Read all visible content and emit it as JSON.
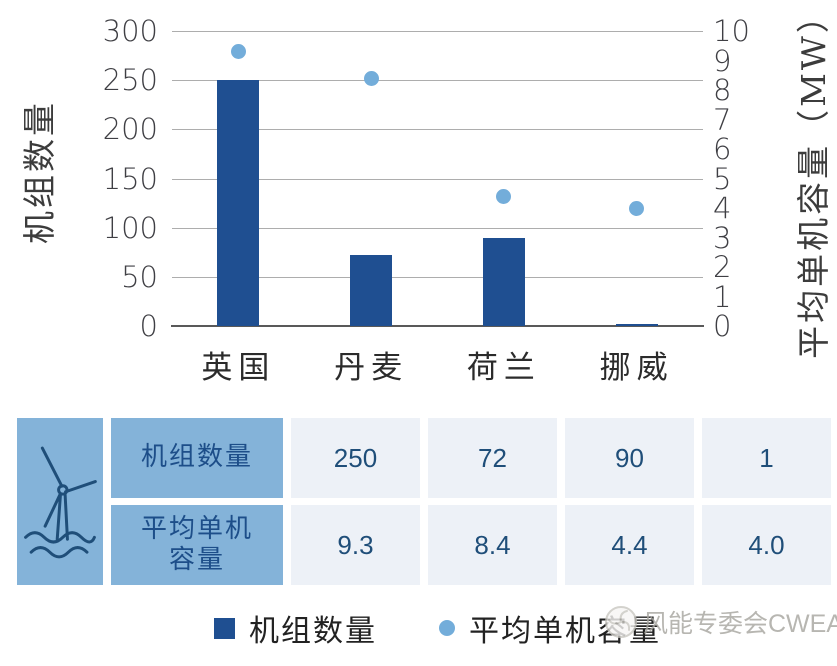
{
  "chart_data": {
    "type": "bar",
    "subtype": "combo-bar-scatter-dual-axis",
    "categories": [
      "英国",
      "丹麦",
      "荷兰",
      "挪威"
    ],
    "series": [
      {
        "name": "机组数量",
        "type": "bar",
        "axis": "left",
        "color": "#1F4F91",
        "values": [
          250,
          72,
          90,
          1
        ]
      },
      {
        "name": "平均单机容量",
        "type": "scatter",
        "axis": "right",
        "color": "#73ADDA",
        "values": [
          9.3,
          8.4,
          4.4,
          4.0
        ]
      }
    ],
    "left_axis": {
      "label": "机组数量",
      "min": 0,
      "max": 300,
      "step": 50,
      "ticks": [
        0,
        50,
        100,
        150,
        200,
        250,
        300
      ]
    },
    "right_axis": {
      "label": "平均单机容量（MW）",
      "min": 0,
      "max": 10,
      "step": 1,
      "ticks": [
        0,
        1,
        2,
        3,
        4,
        5,
        6,
        7,
        8,
        9,
        10
      ]
    },
    "grid": true,
    "legend_position": "bottom"
  },
  "table": {
    "icon": "offshore-wind-turbine-icon",
    "row_headers": [
      "机组数量",
      "平均单机\n容量"
    ],
    "rows": [
      [
        "250",
        "72",
        "90",
        "1"
      ],
      [
        "9.3",
        "8.4",
        "4.4",
        "4.0"
      ]
    ]
  },
  "watermark": {
    "text": "风能专委会CWEA"
  },
  "colors": {
    "bar": "#1F4F91",
    "dot": "#73ADDA",
    "table_header_bg": "#84B3D9",
    "table_value_bg": "#EDF1F7",
    "table_text": "#1F4E79",
    "gridline": "#ADADAD",
    "axis_line": "#595959"
  }
}
